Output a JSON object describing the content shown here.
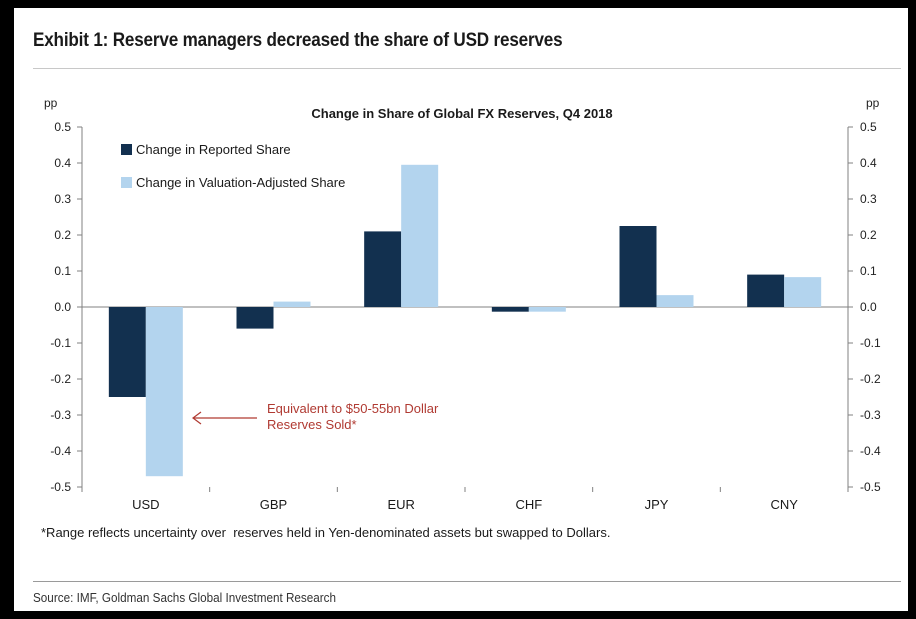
{
  "exhibit": {
    "title": "Exhibit 1: Reserve managers decreased the share of USD reserves",
    "source": "Source: IMF, Goldman Sachs Global Investment Research"
  },
  "chart_data": {
    "type": "bar",
    "title": "Change in Share of Global FX Reserves, Q4 2018",
    "ylabel_left": "pp",
    "ylabel_right": "pp",
    "categories": [
      "USD",
      "GBP",
      "EUR",
      "CHF",
      "JPY",
      "CNY"
    ],
    "series": [
      {
        "name": "Change in Reported Share",
        "color": "#12304f",
        "values": [
          -0.25,
          -0.06,
          0.21,
          -0.013,
          0.225,
          0.09
        ]
      },
      {
        "name": "Change in Valuation-Adjusted Share",
        "color": "#b3d4ee",
        "values": [
          -0.47,
          0.015,
          0.395,
          -0.013,
          0.033,
          0.083
        ]
      }
    ],
    "ylim": [
      -0.5,
      0.5
    ],
    "yticks": [
      "0.5",
      "0.4",
      "0.3",
      "0.2",
      "0.1",
      "0.0",
      "-0.1",
      "-0.2",
      "-0.3",
      "-0.4",
      "-0.5"
    ],
    "ytick_values": [
      0.5,
      0.4,
      0.3,
      0.2,
      0.1,
      0.0,
      -0.1,
      -0.2,
      -0.3,
      -0.4,
      -0.5
    ],
    "legend_position": "top-left",
    "annotation": {
      "line1": "Equivalent to $50-55bn Dollar",
      "line2": "Reserves Sold*",
      "color": "#b03a32",
      "target_category": "USD",
      "target_value": -0.31
    },
    "footnote": "*Range reflects uncertainty over  reserves held in Yen-denominated assets but swapped to Dollars."
  }
}
